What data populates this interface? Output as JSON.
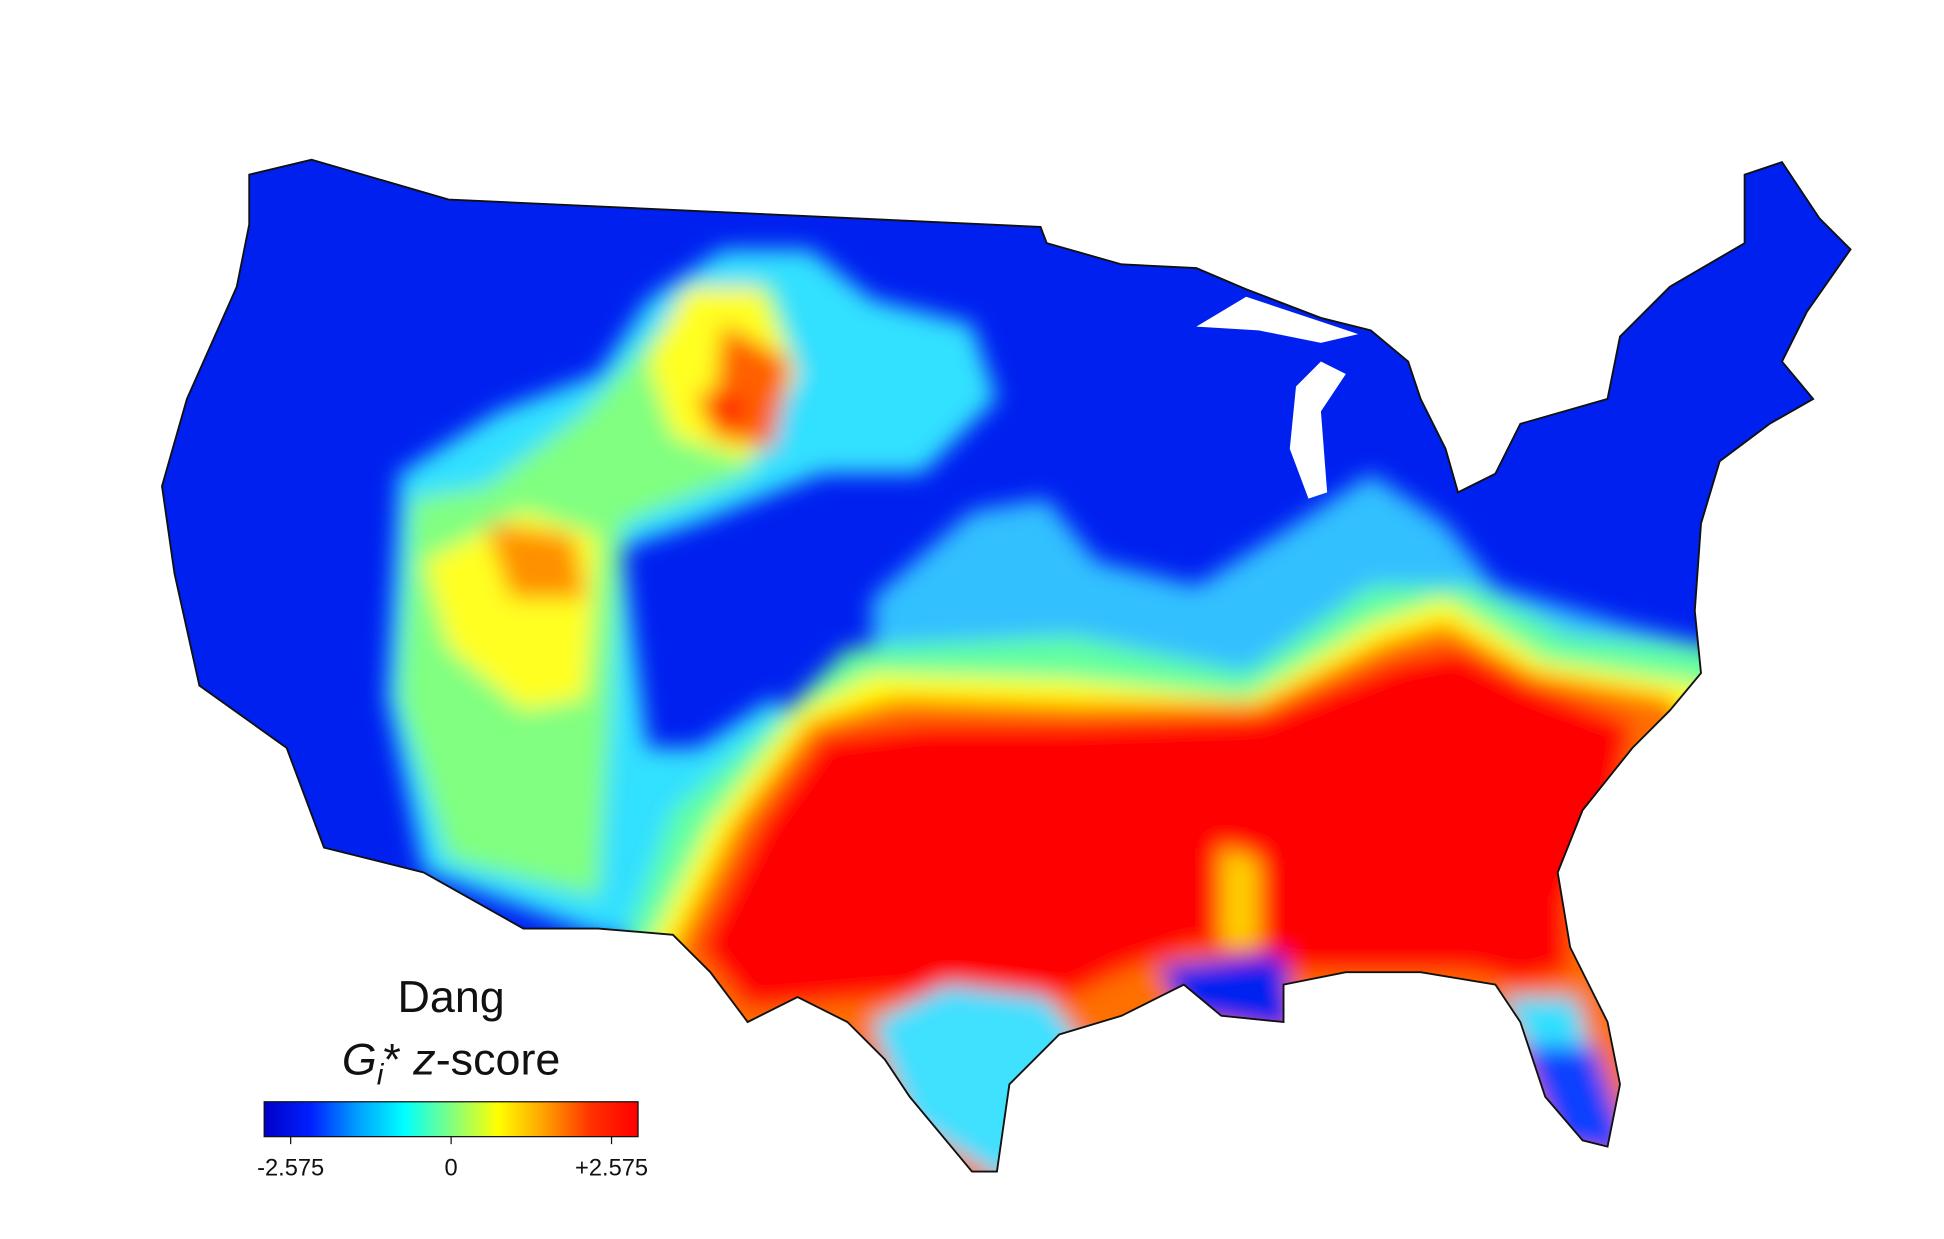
{
  "map": {
    "title": "Dang",
    "legend": {
      "title_parts": [
        "G",
        "i",
        "* ",
        "z",
        "-score"
      ],
      "lim": [
        -3,
        3
      ],
      "ticks": [
        -2.575,
        0,
        {
          "value": 2.575,
          "label": "+2.575"
        }
      ],
      "colors": [
        "#0000c8",
        "#0020ff",
        "#00a0ff",
        "#00ffff",
        "#80ff80",
        "#ffff00",
        "#ffa000",
        "#ff3000",
        "#ff0000"
      ]
    }
  }
}
